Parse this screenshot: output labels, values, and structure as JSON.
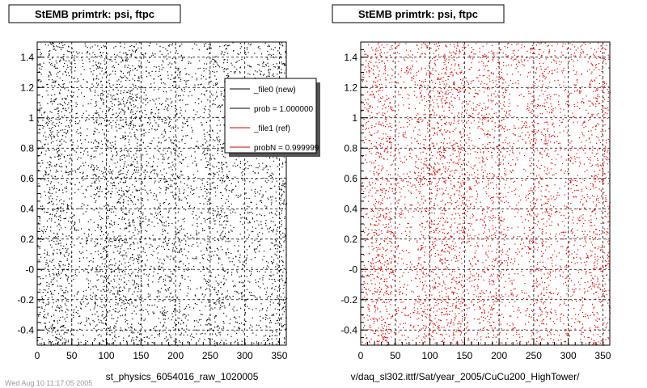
{
  "chart_data": [
    {
      "type": "scatter",
      "title": "StEMB primtrk: psi, ftpc",
      "xlabel": "st_physics_6054016_raw_1020005",
      "xlim": [
        0,
        360
      ],
      "ylim": [
        -0.5,
        1.5
      ],
      "xticks": [
        "0",
        "50",
        "100",
        "150",
        "200",
        "250",
        "300",
        "350"
      ],
      "yticks": [
        "-0.4",
        "-0.2",
        "-0",
        "0.2",
        "0.4",
        "0.6",
        "0.8",
        "1",
        "1.2",
        "1.4"
      ],
      "grid": true,
      "marker_color": "#000000",
      "density_bands": [
        [
          0,
          10,
          0.55
        ],
        [
          10,
          45,
          1.0
        ],
        [
          45,
          80,
          0.5
        ],
        [
          80,
          115,
          0.9
        ],
        [
          115,
          150,
          1.0
        ],
        [
          150,
          175,
          0.6
        ],
        [
          175,
          210,
          0.8
        ],
        [
          210,
          240,
          0.45
        ],
        [
          240,
          275,
          0.8
        ],
        [
          275,
          300,
          0.5
        ],
        [
          300,
          330,
          0.55
        ],
        [
          330,
          360,
          0.85
        ]
      ],
      "points_estimate": 5200,
      "legend": {
        "placement": "top-right",
        "entries": [
          {
            "label": "_file0 (new)",
            "color": "#000000"
          },
          {
            "label": "prob = 1.000000",
            "color": "#000000"
          },
          {
            "label": "_file1 (ref)",
            "color": "#cc0000"
          },
          {
            "label": "probN = 0.999999",
            "color": "#cc0000"
          }
        ]
      }
    },
    {
      "type": "scatter",
      "title": "StEMB primtrk: psi, ftpc",
      "xlabel": "v/daq_sl302.ittf/Sat/year_2005/CuCu200_HighTower/",
      "xlim": [
        0,
        360
      ],
      "ylim": [
        -0.5,
        1.5
      ],
      "xticks": [
        "0",
        "50",
        "100",
        "150",
        "200",
        "250",
        "300",
        "350"
      ],
      "yticks": [
        "-0.4",
        "-0.2",
        "-0",
        "0.2",
        "0.4",
        "0.6",
        "0.8",
        "1",
        "1.2",
        "1.4"
      ],
      "grid": true,
      "marker_color": "#dd0000",
      "density_bands": [
        [
          0,
          10,
          0.55
        ],
        [
          10,
          45,
          1.0
        ],
        [
          45,
          80,
          0.5
        ],
        [
          80,
          115,
          0.9
        ],
        [
          115,
          150,
          1.0
        ],
        [
          150,
          175,
          0.6
        ],
        [
          175,
          210,
          0.8
        ],
        [
          210,
          240,
          0.45
        ],
        [
          240,
          275,
          0.8
        ],
        [
          275,
          300,
          0.5
        ],
        [
          300,
          330,
          0.55
        ],
        [
          330,
          360,
          0.85
        ]
      ],
      "points_estimate": 5200
    }
  ],
  "footer_text": "Wed Aug 10 11:17:05 2005"
}
